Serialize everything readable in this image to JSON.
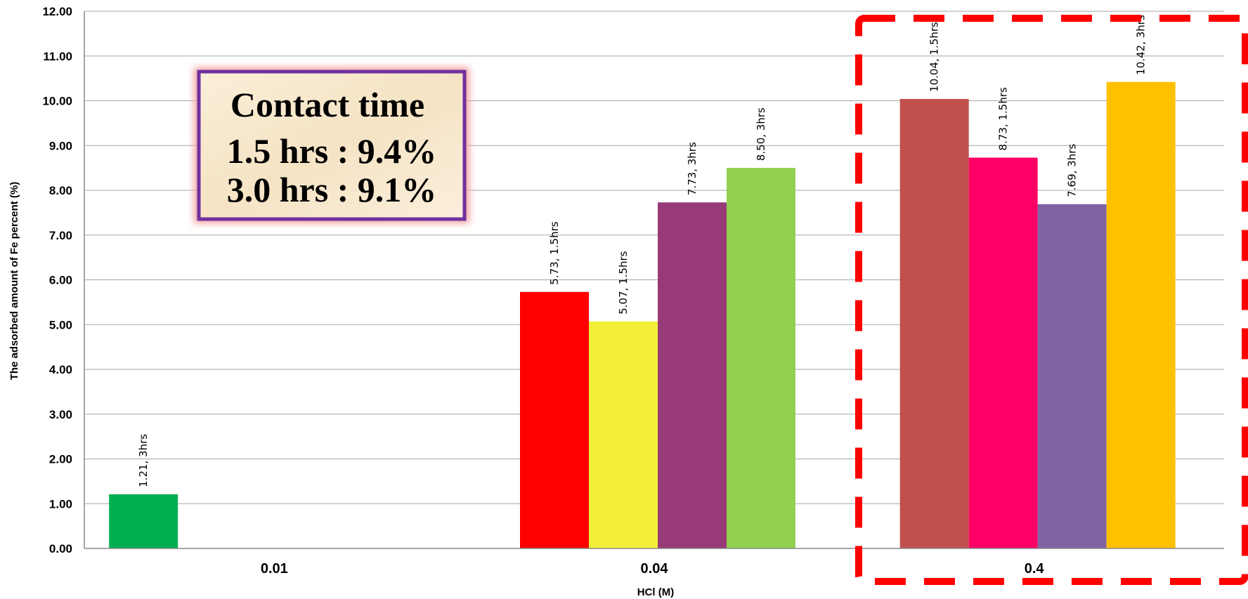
{
  "chart_data": {
    "type": "bar",
    "xlabel": "HCl (M)",
    "ylabel": "The adsorbed amount of  Fe percent (%)",
    "ylim": [
      0,
      12
    ],
    "yticks": [
      "0.00",
      "1.00",
      "2.00",
      "3.00",
      "4.00",
      "5.00",
      "6.00",
      "7.00",
      "8.00",
      "9.00",
      "10.00",
      "11.00",
      "12.00"
    ],
    "grid": true,
    "categories": [
      "0.01",
      "0.04",
      "0.4"
    ],
    "groups": [
      {
        "category": "0.01",
        "bars": [
          {
            "value": 1.21,
            "label": "1.21, 3hrs",
            "color": "#00B050"
          }
        ]
      },
      {
        "category": "0.04",
        "bars": [
          {
            "value": 5.73,
            "label": "5.73, 1.5hrs",
            "color": "#FF0000"
          },
          {
            "value": 5.07,
            "label": "5.07, 1.5hrs",
            "color": "#F4F03A"
          },
          {
            "value": 7.73,
            "label": "7.73, 3hrs",
            "color": "#993A78"
          },
          {
            "value": 8.5,
            "label": "8.50, 3hrs",
            "color": "#92D050"
          }
        ]
      },
      {
        "category": "0.4",
        "bars": [
          {
            "value": 10.04,
            "label": "10.04, 1.5hrs",
            "color": "#C0504D"
          },
          {
            "value": 8.73,
            "label": "8.73, 1.5hrs",
            "color": "#FF0066"
          },
          {
            "value": 7.69,
            "label": "7.69, 3hrs",
            "color": "#8064A2"
          },
          {
            "value": 10.42,
            "label": "10.42, 3hrs",
            "color": "#FFC000"
          }
        ]
      }
    ],
    "annotations": {
      "callout_lines": [
        "Contact time",
        "1.5 hrs :  9.4%",
        "3.0 hrs :  9.1%"
      ],
      "highlight_category": "0.4"
    }
  }
}
